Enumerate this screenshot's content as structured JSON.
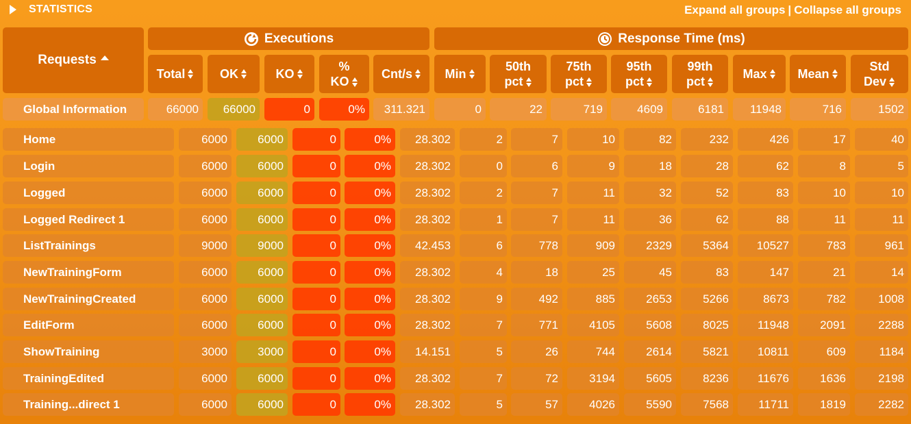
{
  "header": {
    "title": "STATISTICS",
    "expand_label": "Expand all groups",
    "separator": "|",
    "collapse_label": "Collapse all groups"
  },
  "groups": {
    "executions": "Executions",
    "response_time": "Response Time (ms)"
  },
  "columns": {
    "requests": "Requests",
    "total": "Total",
    "ok": "OK",
    "ko": "KO",
    "pct": "%",
    "pct_ko": "KO",
    "cnts": "Cnt/s",
    "min": "Min",
    "p50a": "50th",
    "p50b": "pct",
    "p75a": "75th",
    "p75b": "pct",
    "p95a": "95th",
    "p95b": "pct",
    "p99a": "99th",
    "p99b": "pct",
    "max": "Max",
    "mean": "Mean",
    "stda": "Std",
    "stdb": "Dev"
  },
  "global": {
    "name": "Global Information",
    "total": "66000",
    "ok": "66000",
    "ko": "0",
    "pct_ko": "0%",
    "cnts": "311.321",
    "min": "0",
    "p50": "22",
    "p75": "719",
    "p95": "4609",
    "p99": "6181",
    "max": "11948",
    "mean": "716",
    "std": "1502"
  },
  "rows": [
    {
      "name": "Home",
      "total": "6000",
      "ok": "6000",
      "ko": "0",
      "pct_ko": "0%",
      "cnts": "28.302",
      "min": "2",
      "p50": "7",
      "p75": "10",
      "p95": "82",
      "p99": "232",
      "max": "426",
      "mean": "17",
      "std": "40"
    },
    {
      "name": "Login",
      "total": "6000",
      "ok": "6000",
      "ko": "0",
      "pct_ko": "0%",
      "cnts": "28.302",
      "min": "0",
      "p50": "6",
      "p75": "9",
      "p95": "18",
      "p99": "28",
      "max": "62",
      "mean": "8",
      "std": "5"
    },
    {
      "name": "Logged",
      "total": "6000",
      "ok": "6000",
      "ko": "0",
      "pct_ko": "0%",
      "cnts": "28.302",
      "min": "2",
      "p50": "7",
      "p75": "11",
      "p95": "32",
      "p99": "52",
      "max": "83",
      "mean": "10",
      "std": "10"
    },
    {
      "name": "Logged Redirect 1",
      "total": "6000",
      "ok": "6000",
      "ko": "0",
      "pct_ko": "0%",
      "cnts": "28.302",
      "min": "1",
      "p50": "7",
      "p75": "11",
      "p95": "36",
      "p99": "62",
      "max": "88",
      "mean": "11",
      "std": "11"
    },
    {
      "name": "ListTrainings",
      "total": "9000",
      "ok": "9000",
      "ko": "0",
      "pct_ko": "0%",
      "cnts": "42.453",
      "min": "6",
      "p50": "778",
      "p75": "909",
      "p95": "2329",
      "p99": "5364",
      "max": "10527",
      "mean": "783",
      "std": "961"
    },
    {
      "name": "NewTrainingForm",
      "total": "6000",
      "ok": "6000",
      "ko": "0",
      "pct_ko": "0%",
      "cnts": "28.302",
      "min": "4",
      "p50": "18",
      "p75": "25",
      "p95": "45",
      "p99": "83",
      "max": "147",
      "mean": "21",
      "std": "14"
    },
    {
      "name": "NewTrainingCreated",
      "total": "6000",
      "ok": "6000",
      "ko": "0",
      "pct_ko": "0%",
      "cnts": "28.302",
      "min": "9",
      "p50": "492",
      "p75": "885",
      "p95": "2653",
      "p99": "5266",
      "max": "8673",
      "mean": "782",
      "std": "1008"
    },
    {
      "name": "EditForm",
      "total": "6000",
      "ok": "6000",
      "ko": "0",
      "pct_ko": "0%",
      "cnts": "28.302",
      "min": "7",
      "p50": "771",
      "p75": "4105",
      "p95": "5608",
      "p99": "8025",
      "max": "11948",
      "mean": "2091",
      "std": "2288"
    },
    {
      "name": "ShowTraining",
      "total": "3000",
      "ok": "3000",
      "ko": "0",
      "pct_ko": "0%",
      "cnts": "14.151",
      "min": "5",
      "p50": "26",
      "p75": "744",
      "p95": "2614",
      "p99": "5821",
      "max": "10811",
      "mean": "609",
      "std": "1184"
    },
    {
      "name": "TrainingEdited",
      "total": "6000",
      "ok": "6000",
      "ko": "0",
      "pct_ko": "0%",
      "cnts": "28.302",
      "min": "7",
      "p50": "72",
      "p75": "3194",
      "p95": "5605",
      "p99": "8236",
      "max": "11676",
      "mean": "1636",
      "std": "2198"
    },
    {
      "name": "Training...direct 1",
      "total": "6000",
      "ok": "6000",
      "ko": "0",
      "pct_ko": "0%",
      "cnts": "28.302",
      "min": "5",
      "p50": "57",
      "p75": "4026",
      "p95": "5590",
      "p99": "7568",
      "max": "11711",
      "mean": "1819",
      "std": "2282"
    }
  ]
}
